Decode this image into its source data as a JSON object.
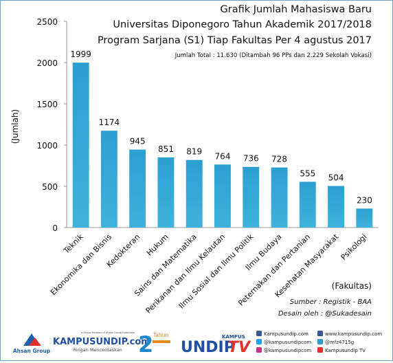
{
  "chart_data": {
    "type": "bar",
    "title": "Grafik Jumlah Mahasiswa Baru",
    "subtitle_lines": [
      "Universitas Diponegoro Tahun Akademik 2017/2018",
      "Program Sarjana (S1) Tiap Fakultas Per 4 agustus 2017"
    ],
    "note": "Jumlah Total : 11.630 (Ditambah 96 PPs dan 2.229 Sekolah Vokasi)",
    "ylabel": "(Jumlah)",
    "xlabel": "(Fakultas)",
    "ylim": [
      0,
      2500
    ],
    "yticks": [
      0,
      500,
      1000,
      1500,
      2000,
      2500
    ],
    "grid": false,
    "bar_color": "#3fb3dc",
    "categories": [
      "Teknik",
      "Ekonomika dan Bisnis",
      "Kedokteran",
      "Hukum",
      "Sains dan Matematika",
      "Perikanan dan Ilmu Kelautan",
      "Ilmu Sosial dan Ilmu Politik",
      "Ilmu Budaya",
      "Peternakan dan Pertanian",
      "Kesehatan Masyarakat",
      "Psikologi"
    ],
    "values": [
      1999,
      1174,
      945,
      851,
      819,
      764,
      736,
      728,
      555,
      504,
      230
    ]
  },
  "credits": {
    "source": "Sumber : Registik - BAA",
    "designer": "Desain oleh : @Sukadesain"
  },
  "footer": {
    "ahsan_group": "Ahsan Group",
    "member_note": "a Group Member of Ahsan Group Indonesia",
    "kampusundip": "KAMPUSUNDIP.com",
    "tagline": "Ringan Mencerdaskan",
    "anniversary_number": "2",
    "anniversary_word": "Tahun",
    "tv_kampus": "KAMPUS",
    "tv_undip": "UNDIP",
    "tv_tv": "TV",
    "socials": [
      "Kampusundip.com",
      "@kampusundipcom",
      "@kampusundipcom",
      "www.kampusundip.com",
      "@mfz4715g",
      "Kampusundip TV"
    ]
  }
}
